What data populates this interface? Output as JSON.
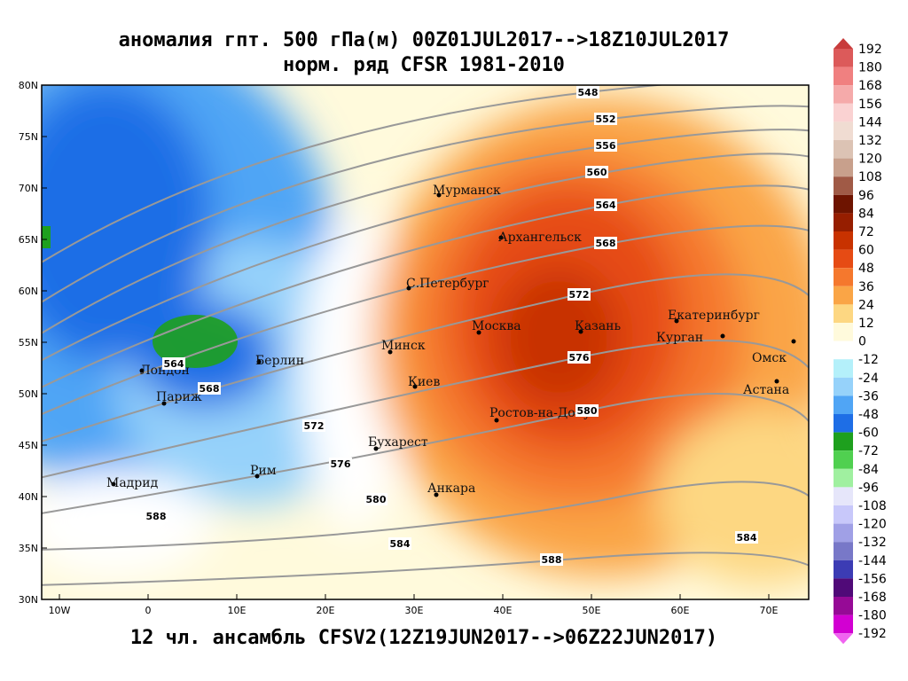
{
  "header": {
    "title": "аномалия гпт. 500 гПа(м) 00Z01JUL2017-->18Z10JUL2017",
    "subtitle": "норм. ряд CFSR 1981-2010"
  },
  "footer": "12 чл. ансамбль CFSV2(12Z19JUN2017-->06Z22JUN2017)",
  "lat_labels": [
    "80N",
    "75N",
    "70N",
    "65N",
    "60N",
    "55N",
    "50N",
    "45N",
    "40N",
    "35N",
    "30N"
  ],
  "lon_labels": [
    "10W",
    "0",
    "10E",
    "20E",
    "30E",
    "40E",
    "50E",
    "60E",
    "70E"
  ],
  "cities": [
    "Мурманск",
    "Архангельск",
    "С.Петербург",
    "Москва",
    "Казань",
    "Екатеринбург",
    "Курган",
    "Омск",
    "Астана",
    "Минск",
    "Киев",
    "Берлин",
    "Лондон",
    "Париж",
    "Ростов-на-Дону",
    "Бухарест",
    "Рим",
    "Мадрид",
    "Анкара"
  ],
  "contour_labels": [
    548,
    552,
    556,
    560,
    564,
    568,
    572,
    576,
    580,
    584,
    584,
    588,
    588,
    564,
    568,
    572,
    576,
    580
  ],
  "colorbar": {
    "levels": [
      192,
      180,
      168,
      156,
      144,
      132,
      120,
      108,
      96,
      84,
      72,
      60,
      48,
      36,
      24,
      12,
      0,
      -12,
      -24,
      -36,
      -48,
      -60,
      -72,
      -84,
      -96,
      -108,
      -120,
      -132,
      -144,
      -156,
      -168,
      -180,
      -192
    ],
    "colors": [
      "#c83c3c",
      "#dc5a5a",
      "#f08080",
      "#f5aaaa",
      "#fad2d2",
      "#f0dcd2",
      "#dcc3b4",
      "#c8a08c",
      "#a05a46",
      "#6e1400",
      "#961e00",
      "#c83200",
      "#e64b14",
      "#f5782d",
      "#faa546",
      "#fdd782",
      "#fffadc",
      "#ffffff",
      "#b4f0fa",
      "#96d2fa",
      "#50a5f5",
      "#1e6ee6",
      "#1ea01e",
      "#50d050",
      "#a0f0a0",
      "#e6e6fa",
      "#c8c8fa",
      "#a0a0e6",
      "#7878c8",
      "#3c3cb4",
      "#500a78",
      "#960a96",
      "#d200d2",
      "#f064f0"
    ]
  }
}
